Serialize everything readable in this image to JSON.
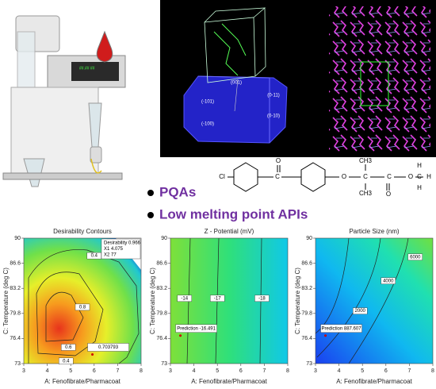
{
  "crystal_faces": [
    "(001)",
    "(-101)",
    "(0-11)",
    "(-100)",
    "(0-10)"
  ],
  "molecule_atoms": [
    "Cl",
    "C",
    "O",
    "O",
    "C",
    "CH3",
    "CH3",
    "C",
    "O",
    "O",
    "C",
    "H",
    "H",
    "H"
  ],
  "bullets": [
    "PQAs",
    "Low melting point APIs"
  ],
  "panels": [
    {
      "title": "Desirability Contours",
      "xlabel": "A: Fenofibrate/Pharmacoat",
      "ylabel": "C: Temperature (deg C)",
      "xlim": [
        3,
        8
      ],
      "ylim": [
        73,
        90
      ],
      "xticks": [
        3,
        4,
        5,
        6,
        7,
        8
      ],
      "yticks": [
        73,
        76.4,
        79.8,
        83.2,
        86.6,
        90
      ],
      "legend": [
        "Desirability 0.966",
        "X1 4.075",
        "X2 77"
      ],
      "contour_labels": [
        "0.4",
        "0.6",
        "0.8",
        "0.4"
      ],
      "prediction": "0.703793"
    },
    {
      "title": "Z - Potential (mV)",
      "xlabel": "A: Fenofibrate/Pharmacoat",
      "ylabel": "C: Temperature (deg C)",
      "xlim": [
        3,
        8
      ],
      "ylim": [
        73,
        90
      ],
      "xticks": [
        3,
        4,
        5,
        6,
        7,
        8
      ],
      "yticks": [
        73,
        76.4,
        79.8,
        83.2,
        86.6,
        90
      ],
      "contour_labels": [
        "-14",
        "-17",
        "-18"
      ],
      "prediction": "Prediction -16.491"
    },
    {
      "title": "Particle Size (nm)",
      "xlabel": "A: Fenofibrate/Pharmacoat",
      "ylabel": "C: Temperature (deg C)",
      "xlim": [
        3,
        8
      ],
      "ylim": [
        73,
        90
      ],
      "xticks": [
        3,
        4,
        5,
        6,
        7,
        8
      ],
      "yticks": [
        73,
        76.4,
        79.8,
        83.2,
        86.6,
        90
      ],
      "contour_labels": [
        "2000",
        "4000",
        "6000"
      ],
      "prediction": "Prediction 887.607"
    }
  ]
}
